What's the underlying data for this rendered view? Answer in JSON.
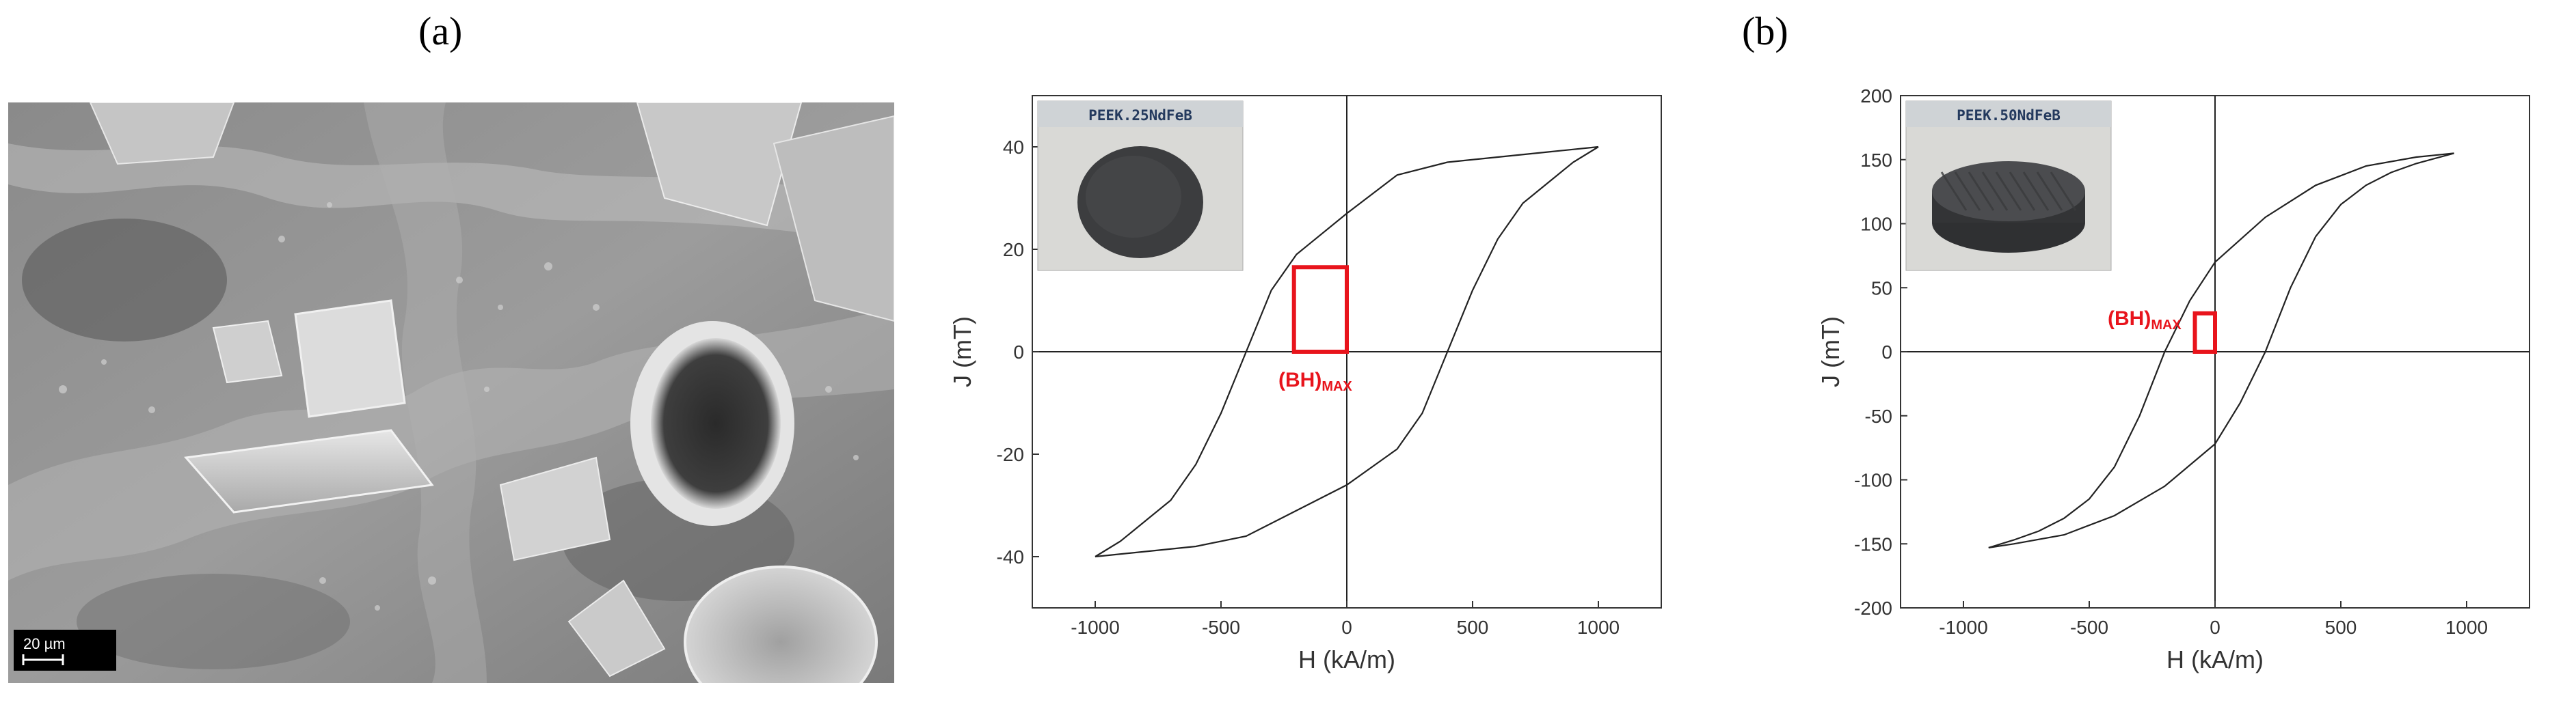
{
  "panels": {
    "a": "(a)",
    "b": "(b)"
  },
  "sem": {
    "scale_bar_label": "20 µm"
  },
  "chart_data": [
    {
      "type": "line",
      "xlabel": "H (kA/m)",
      "ylabel": "J (mT)",
      "xlim": [
        -1250,
        1250
      ],
      "ylim": [
        -50,
        50
      ],
      "xticks": [
        -1000,
        -500,
        0,
        500,
        1000
      ],
      "yticks": [
        -40,
        -20,
        0,
        20,
        40
      ],
      "inset_label": "PEEK.25NdFeB",
      "bh_label": "(BH)",
      "bh_subscript": "MAX",
      "bh_box": {
        "h": [
          -210,
          0
        ],
        "j": [
          0,
          16.5
        ]
      },
      "series": [
        {
          "x": [
            1000,
            800,
            600,
            400,
            200,
            0,
            -200,
            -300,
            -400,
            -500,
            -600,
            -700,
            -800,
            -900,
            -1000
          ],
          "y": [
            40,
            39,
            38,
            37,
            34.5,
            27,
            19,
            12,
            0,
            -12,
            -22,
            -29,
            -33,
            -37,
            -40
          ]
        },
        {
          "x": [
            -1000,
            -800,
            -600,
            -400,
            -200,
            0,
            200,
            300,
            400,
            500,
            600,
            700,
            800,
            900,
            1000
          ],
          "y": [
            -40,
            -39,
            -38,
            -36,
            -31,
            -26,
            -19,
            -12,
            0,
            12,
            22,
            29,
            33,
            37,
            40
          ]
        }
      ]
    },
    {
      "type": "line",
      "xlabel": "H (kA/m)",
      "ylabel": "J (mT)",
      "xlim": [
        -1250,
        1250
      ],
      "ylim": [
        -200,
        200
      ],
      "xticks": [
        -1000,
        -500,
        0,
        500,
        1000
      ],
      "yticks": [
        -200,
        -150,
        -100,
        -50,
        0,
        50,
        100,
        150,
        200
      ],
      "inset_label": "PEEK.50NdFeB",
      "bh_label": "(BH)",
      "bh_subscript": "MAX",
      "bh_box": {
        "h": [
          -80,
          0
        ],
        "j": [
          0,
          30
        ]
      },
      "series": [
        {
          "x": [
            950,
            800,
            600,
            400,
            200,
            0,
            -100,
            -200,
            -300,
            -400,
            -500,
            -600,
            -700,
            -800,
            -900
          ],
          "y": [
            155,
            152,
            145,
            130,
            105,
            70,
            40,
            0,
            -50,
            -90,
            -115,
            -130,
            -140,
            -147,
            -153
          ]
        },
        {
          "x": [
            -900,
            -800,
            -600,
            -400,
            -200,
            0,
            100,
            200,
            300,
            400,
            500,
            600,
            700,
            800,
            950
          ],
          "y": [
            -153,
            -150,
            -143,
            -128,
            -105,
            -72,
            -40,
            0,
            50,
            90,
            115,
            130,
            140,
            147,
            155
          ]
        }
      ]
    }
  ]
}
